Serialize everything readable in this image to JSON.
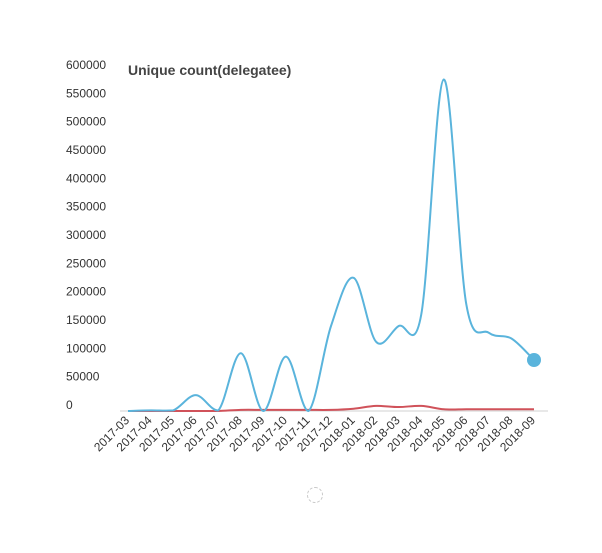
{
  "chart_data": {
    "type": "line",
    "title": "Unique count(delegatee)",
    "xlabel": "",
    "ylabel": "",
    "ylim": [
      0,
      600000
    ],
    "yticks": [
      0,
      50000,
      100000,
      150000,
      200000,
      250000,
      300000,
      350000,
      400000,
      450000,
      500000,
      550000,
      600000
    ],
    "ytick_labels": [
      "0",
      "50000",
      "100000",
      "150000",
      "200000",
      "250000",
      "300000",
      "350000",
      "400000",
      "450000",
      "500000",
      "550000",
      "600000"
    ],
    "categories": [
      "2017-03",
      "2017-04",
      "2017-05",
      "2017-06",
      "2017-07",
      "2017-08",
      "2017-09",
      "2017-10",
      "2017-11",
      "2017-12",
      "2018-01",
      "2018-02",
      "2018-03",
      "2018-04",
      "2018-05",
      "2018-06",
      "2018-07",
      "2018-08",
      "2018-09"
    ],
    "series": [
      {
        "color": "#5ab4dc",
        "values": [
          0,
          1000,
          1000,
          28000,
          1000,
          102000,
          0,
          96000,
          0,
          150000,
          235000,
          122000,
          150000,
          170000,
          585000,
          188000,
          138000,
          128000,
          90000
        ],
        "end_marker": true
      },
      {
        "color": "#d0525a",
        "values": [
          0,
          0,
          0,
          0,
          0,
          2000,
          2000,
          2000,
          2000,
          2000,
          4000,
          9000,
          7000,
          9000,
          3000,
          3000,
          3000,
          3000,
          3000
        ],
        "end_marker": false
      }
    ],
    "grid": false,
    "legend": "none"
  },
  "icons": {
    "loading": "loading-spinner-icon"
  }
}
